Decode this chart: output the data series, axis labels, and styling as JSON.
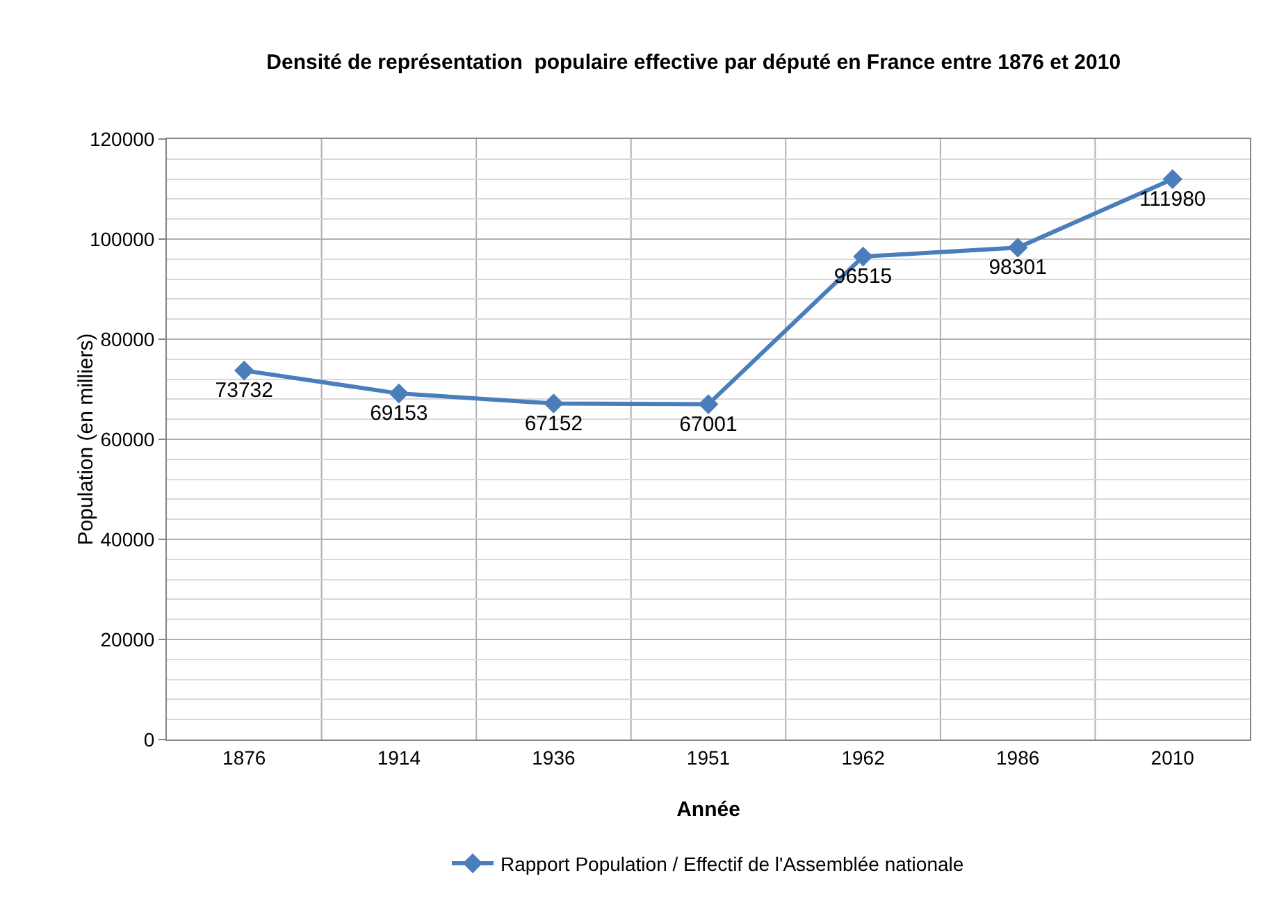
{
  "chart_data": {
    "type": "line",
    "title": "Densité de représentation  populaire effective par député en France entre 1876 et 2010",
    "xlabel": "Année",
    "ylabel": "Population (en milliers)",
    "categories": [
      "1876",
      "1914",
      "1936",
      "1951",
      "1962",
      "1986",
      "2010"
    ],
    "series": [
      {
        "name": "Rapport Population / Effectif de l'Assemblée nationale",
        "color": "#4a7ebb",
        "values": [
          73732,
          69153,
          67152,
          67001,
          96515,
          98301,
          111980
        ]
      }
    ],
    "ylim": [
      0,
      120000
    ],
    "yticks": [
      0,
      20000,
      40000,
      60000,
      80000,
      100000,
      120000
    ],
    "grid": true,
    "legend": "bottom",
    "marker": "diamond",
    "line_style": "solid",
    "data_labels": true
  }
}
